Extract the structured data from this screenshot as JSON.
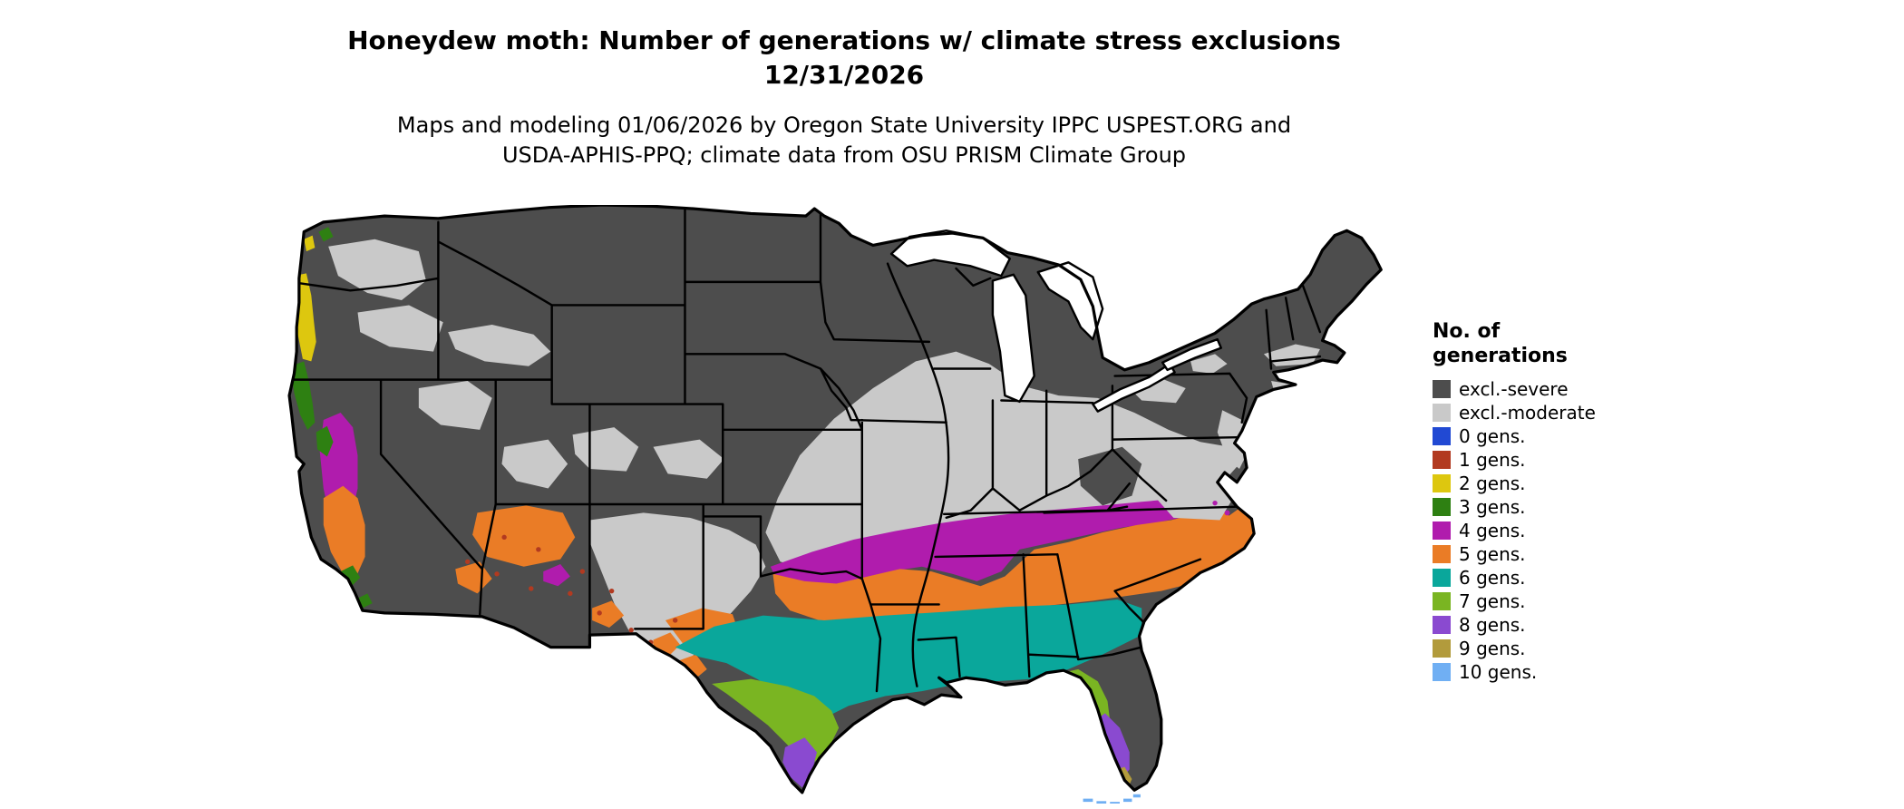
{
  "title": {
    "line1": "Honeydew moth: Number of generations w/ climate stress exclusions",
    "line2": "12/31/2026"
  },
  "subtitle": {
    "line1": "Maps and modeling 01/06/2026 by Oregon State University IPPC USPEST.ORG and",
    "line2": "USDA-APHIS-PPQ; climate data from OSU PRISM Climate Group"
  },
  "legend": {
    "title_line1": "No. of",
    "title_line2": "generations",
    "items": [
      {
        "label": "excl.-severe",
        "color": "#4d4d4d"
      },
      {
        "label": "excl.-moderate",
        "color": "#c9c9c9"
      },
      {
        "label": "0 gens.",
        "color": "#2149d3"
      },
      {
        "label": "1 gens.",
        "color": "#b23a20"
      },
      {
        "label": "2 gens.",
        "color": "#ddc70f"
      },
      {
        "label": "3 gens.",
        "color": "#2e8012"
      },
      {
        "label": "4 gens.",
        "color": "#b01cad"
      },
      {
        "label": "5 gens.",
        "color": "#ea7c26"
      },
      {
        "label": "6 gens.",
        "color": "#0aa79b"
      },
      {
        "label": "7 gens.",
        "color": "#7ab522"
      },
      {
        "label": "8 gens.",
        "color": "#8a4ad0"
      },
      {
        "label": "9 gens.",
        "color": "#b29b3c"
      },
      {
        "label": "10 gens.",
        "color": "#70aff3"
      }
    ]
  },
  "map": {
    "area": "Continental United States",
    "style": "choropleth raster with state borders"
  }
}
